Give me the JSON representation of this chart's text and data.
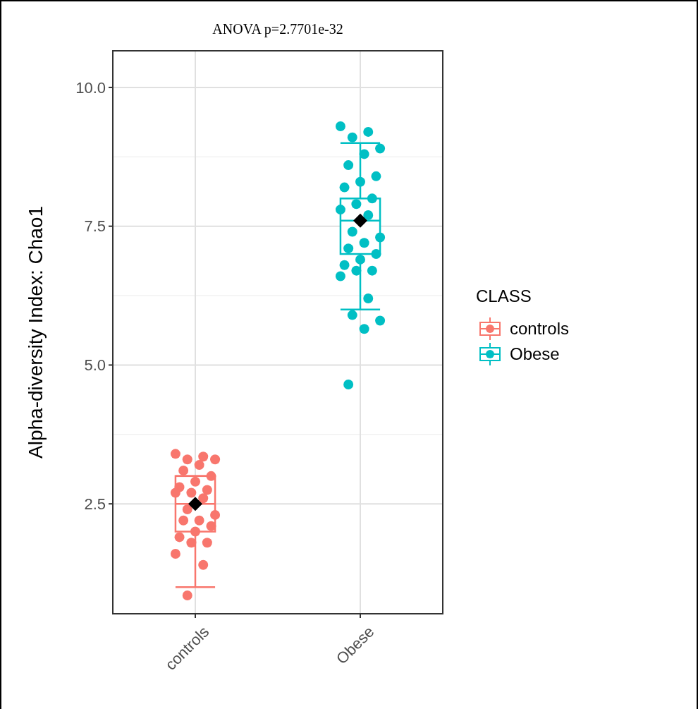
{
  "chart_data": {
    "type": "box",
    "title": "ANOVA p=2.7701e-32",
    "ylabel": "Alpha-diversity Index: Chao1",
    "legend_title": "CLASS",
    "legend": "right",
    "grid": true,
    "categories": [
      "controls",
      "Obese"
    ],
    "boxes": [
      {
        "low": 1.0,
        "q1": 2.0,
        "median": 2.5,
        "q3": 3.0,
        "high": 3.0,
        "mean": 2.5
      },
      {
        "low": 6.0,
        "q1": 7.0,
        "median": 7.6,
        "q3": 8.0,
        "high": 9.0,
        "mean": 7.6
      }
    ],
    "series": [
      {
        "name": "controls",
        "color": "#f8766d",
        "type": "scatter",
        "x": [
          "controls",
          "controls",
          "controls",
          "controls",
          "controls",
          "controls",
          "controls",
          "controls",
          "controls",
          "controls",
          "controls",
          "controls",
          "controls",
          "controls",
          "controls",
          "controls",
          "controls",
          "controls",
          "controls",
          "controls",
          "controls",
          "controls",
          "controls",
          "controls",
          "controls"
        ],
        "values": [
          3.4,
          3.35,
          3.3,
          3.3,
          3.2,
          3.1,
          3.0,
          2.9,
          2.8,
          2.75,
          2.7,
          2.7,
          2.6,
          2.4,
          2.3,
          2.2,
          2.2,
          2.1,
          2.0,
          1.9,
          1.8,
          1.8,
          1.6,
          1.4,
          0.85
        ]
      },
      {
        "name": "Obese",
        "color": "#00bfc4",
        "type": "scatter",
        "x": [
          "Obese",
          "Obese",
          "Obese",
          "Obese",
          "Obese",
          "Obese",
          "Obese",
          "Obese",
          "Obese",
          "Obese",
          "Obese",
          "Obese",
          "Obese",
          "Obese",
          "Obese",
          "Obese",
          "Obese",
          "Obese",
          "Obese",
          "Obese",
          "Obese",
          "Obese",
          "Obese",
          "Obese",
          "Obese",
          "Obese",
          "Obese",
          "Obese"
        ],
        "values": [
          9.3,
          9.2,
          9.1,
          8.9,
          8.8,
          8.6,
          8.4,
          8.3,
          8.2,
          8.0,
          7.9,
          7.8,
          7.7,
          7.4,
          7.3,
          7.2,
          7.1,
          7.0,
          6.9,
          6.8,
          6.7,
          6.7,
          6.6,
          6.2,
          5.9,
          5.8,
          5.65,
          4.65
        ]
      }
    ],
    "ylim": [
      0.52,
      10.66
    ],
    "yticks": [
      {
        "value": 2.5,
        "label": "2.5"
      },
      {
        "value": 5,
        "label": "5.0"
      },
      {
        "value": 7.5,
        "label": "7.5"
      },
      {
        "value": 10,
        "label": "10.0"
      }
    ]
  }
}
